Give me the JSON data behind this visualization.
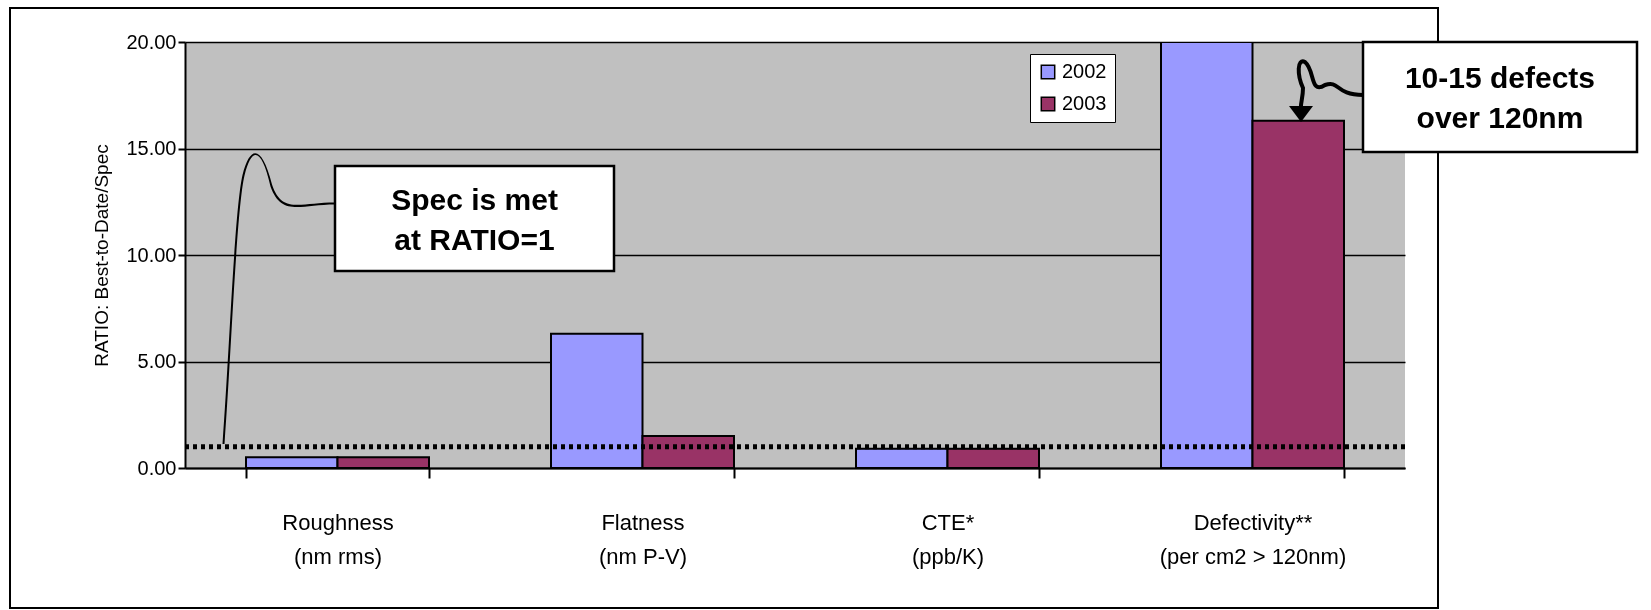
{
  "chart_data": {
    "type": "bar",
    "ylabel": "RATIO:  Best-to-Date/Spec",
    "categories": [
      "Roughness\n(nm rms)",
      "Flatness\n(nm P-V)",
      "CTE*\n(ppb/K)",
      "Defectivity**\n(per cm2 > 120nm)"
    ],
    "series": [
      {
        "name": "2002",
        "color": "#9999ff",
        "values": [
          0.5,
          6.3,
          0.9,
          20
        ]
      },
      {
        "name": "2003",
        "color": "#993366",
        "values": [
          0.5,
          1.5,
          0.9,
          16.3
        ]
      }
    ],
    "ylim": [
      0,
      20
    ],
    "yticks": [
      {
        "value": 0,
        "label": "0.00"
      },
      {
        "value": 5,
        "label": "5.00"
      },
      {
        "value": 10,
        "label": "10.00"
      },
      {
        "value": 15,
        "label": "15.00"
      },
      {
        "value": 20,
        "label": "20.00"
      }
    ],
    "grid": "y",
    "legend": "top right",
    "ref_lines": [
      {
        "axis": "y",
        "value": 1,
        "line_style": "dotted",
        "color": "#000000"
      }
    ],
    "annotations": [
      "Spec is met\nat RATIO=1",
      "10-15 defects\nover 120nm"
    ]
  }
}
